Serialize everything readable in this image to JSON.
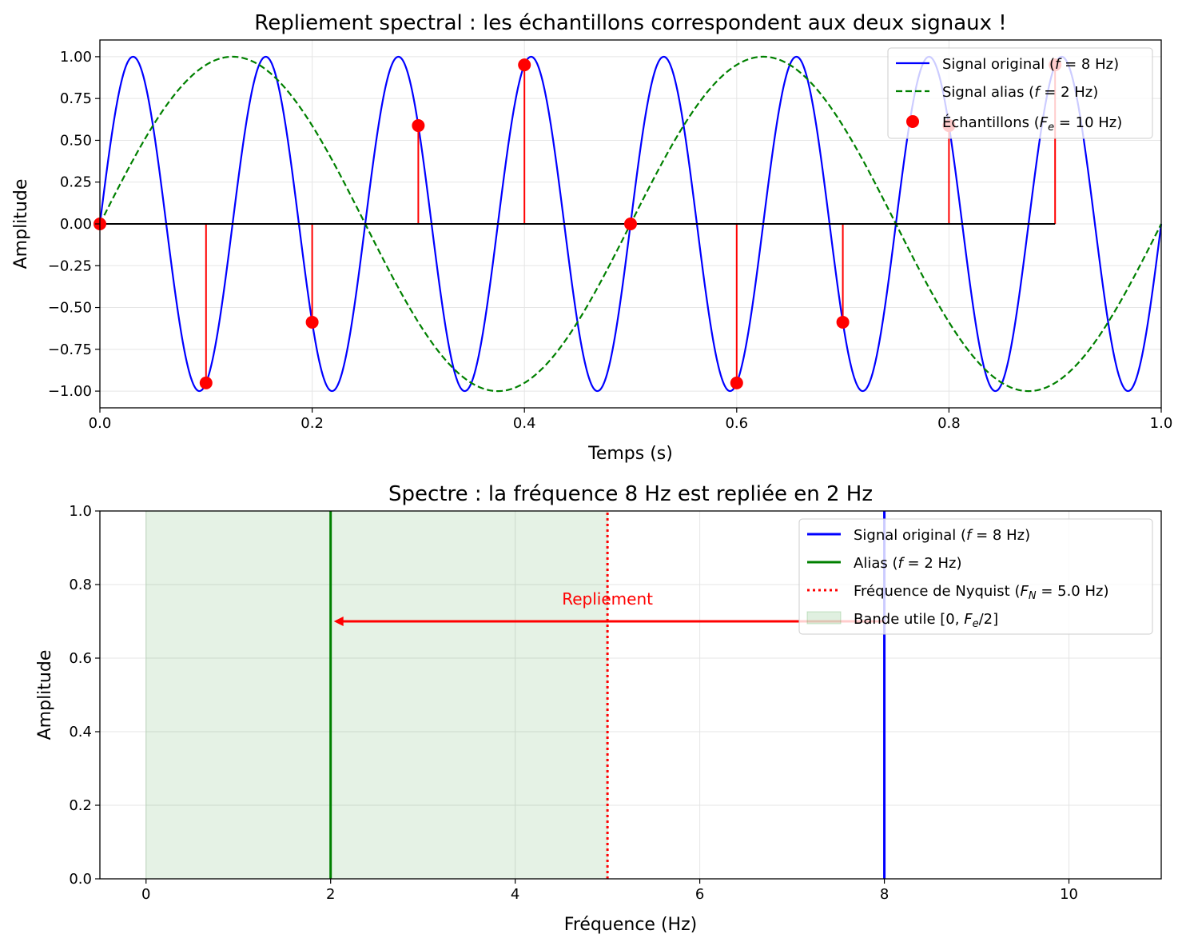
{
  "colors": {
    "original": "#0000ff",
    "alias": "#008000",
    "samples": "#ff0000",
    "stem": "#ff0000",
    "nyquist": "#ff0000",
    "band": "#008000",
    "baseline": "#000000",
    "grid": "#e5e5e5"
  },
  "chart_data": [
    {
      "type": "line",
      "title": "Repliement spectral : les échantillons correspondent aux deux signaux !",
      "xlabel": "Temps (s)",
      "ylabel": "Amplitude",
      "xlim": [
        0.0,
        1.0
      ],
      "ylim": [
        -1.1,
        1.1
      ],
      "grid": true,
      "legend_position": "top-right",
      "xticks": [
        "0.0",
        "0.2",
        "0.4",
        "0.6",
        "0.8",
        "1.0"
      ],
      "xtick_values": [
        0.0,
        0.2,
        0.4,
        0.6,
        0.8,
        1.0
      ],
      "yticks": [
        "−1.00",
        "−0.75",
        "−0.50",
        "−0.25",
        "0.00",
        "0.25",
        "0.50",
        "0.75",
        "1.00"
      ],
      "ytick_values": [
        -1.0,
        -0.75,
        -0.5,
        -0.25,
        0.0,
        0.25,
        0.5,
        0.75,
        1.0
      ],
      "series": [
        {
          "name": "Signal original (f = 8 Hz)",
          "kind": "sine",
          "frequency_hz": 8,
          "amplitude": 1.0,
          "style": "solid"
        },
        {
          "name": "Signal alias (f = 2 Hz)",
          "kind": "sine",
          "frequency_hz": 2,
          "amplitude": 1.0,
          "style": "dashed"
        },
        {
          "name": "Échantillons (Fe = 10 Hz)",
          "kind": "stem",
          "x": [
            0.0,
            0.1,
            0.2,
            0.3,
            0.4,
            0.5,
            0.6,
            0.7,
            0.8,
            0.9
          ],
          "y": [
            0.0,
            -0.951,
            -0.588,
            0.588,
            0.951,
            0.0,
            -0.951,
            -0.588,
            0.588,
            0.951
          ]
        }
      ],
      "legend": [
        {
          "label": "Signal original (",
          "italic": "f",
          "rest": " = 8 Hz)"
        },
        {
          "label": "Signal alias (",
          "italic": "f",
          "rest": " = 2 Hz)"
        },
        {
          "label": "Échantillons (",
          "italic": "F",
          "sub": "e",
          "rest": " = 10 Hz)"
        }
      ]
    },
    {
      "type": "line",
      "title": "Spectre : la fréquence 8 Hz est repliée en 2 Hz",
      "xlabel": "Fréquence (Hz)",
      "ylabel": "Amplitude",
      "xlim": [
        -0.5,
        11.0
      ],
      "ylim": [
        0.0,
        1.0
      ],
      "grid": true,
      "legend_position": "top-right",
      "xticks": [
        "0",
        "2",
        "4",
        "6",
        "8",
        "10"
      ],
      "xtick_values": [
        0,
        2,
        4,
        6,
        8,
        10
      ],
      "yticks": [
        "0.0",
        "0.2",
        "0.4",
        "0.6",
        "0.8",
        "1.0"
      ],
      "ytick_values": [
        0.0,
        0.2,
        0.4,
        0.6,
        0.8,
        1.0
      ],
      "series": [
        {
          "name": "Signal original (f = 8 Hz)",
          "kind": "vline",
          "x": 8,
          "style": "solid"
        },
        {
          "name": "Alias (f = 2 Hz)",
          "kind": "vline",
          "x": 2,
          "style": "solid"
        },
        {
          "name": "Fréquence de Nyquist (FN = 5.0 Hz)",
          "kind": "vline",
          "x": 5.0,
          "style": "dotted"
        },
        {
          "name": "Bande utile [0, Fe/2]",
          "kind": "band",
          "x": [
            0,
            5
          ]
        }
      ],
      "annotation": {
        "text": "Repliement",
        "x": 5.0,
        "y": 0.75,
        "arrow_from": [
          8,
          0.7
        ],
        "arrow_to": [
          2,
          0.7
        ]
      },
      "legend": [
        {
          "label": "Signal original (",
          "italic": "f",
          "rest": " = 8 Hz)"
        },
        {
          "label": "Alias (",
          "italic": "f",
          "rest": " = 2 Hz)"
        },
        {
          "label": "Fréquence de Nyquist (",
          "italic": "F",
          "sub": "N",
          "rest": " = 5.0 Hz)"
        },
        {
          "label": "Bande utile [0, ",
          "italic": "F",
          "sub": "e",
          "rest": "/2]"
        }
      ]
    }
  ]
}
